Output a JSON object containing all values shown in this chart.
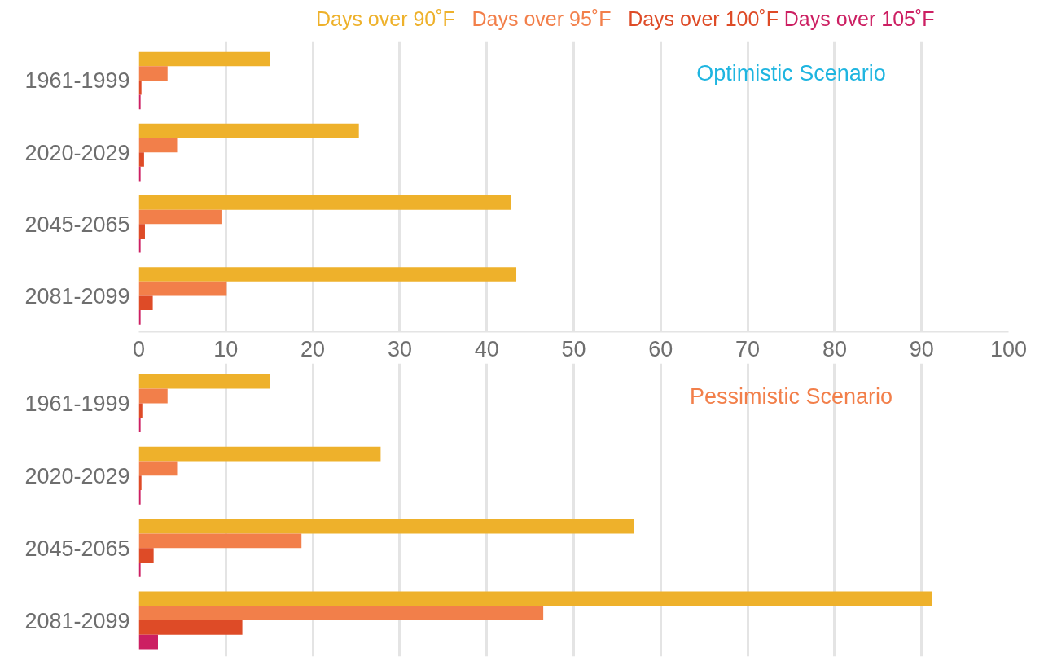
{
  "chart_data": [
    {
      "type": "bar",
      "orientation": "horizontal",
      "annotations": [
        "Optimistic Scenario"
      ],
      "legend": "top",
      "categories": [
        "1961-1999",
        "2020-2029",
        "2045-2065",
        "2081-2099"
      ],
      "series": [
        {
          "name": "Days over 90˚F",
          "color": "#eeb12b",
          "values": [
            15.1,
            25.3,
            42.8,
            43.4
          ]
        },
        {
          "name": "Days over 95˚F",
          "color": "#f27f4a",
          "values": [
            3.3,
            4.4,
            9.5,
            10.1
          ]
        },
        {
          "name": "Days over 100˚F",
          "color": "#de4b27",
          "values": [
            0.3,
            0.6,
            0.7,
            1.6
          ]
        },
        {
          "name": "Days over 105˚F",
          "color": "#cc1f62",
          "values": [
            0.2,
            0.2,
            0.2,
            0.2
          ]
        }
      ],
      "xlim": [
        0,
        100
      ],
      "xticks": [
        0,
        10,
        20,
        30,
        40,
        50,
        60,
        70,
        80,
        90,
        100
      ],
      "grid": "x"
    },
    {
      "type": "bar",
      "orientation": "horizontal",
      "annotations": [
        "Pessimistic Scenario"
      ],
      "categories": [
        "1961-1999",
        "2020-2029",
        "2045-2065",
        "2081-2099"
      ],
      "series": [
        {
          "color": "#eeb12b",
          "values": [
            15.1,
            27.8,
            56.9,
            91.2
          ]
        },
        {
          "color": "#f27f4a",
          "values": [
            3.3,
            4.4,
            18.7,
            46.5
          ]
        },
        {
          "color": "#de4b27",
          "values": [
            0.4,
            0.3,
            1.7,
            11.9
          ]
        },
        {
          "color": "#cc1f62",
          "values": [
            0.2,
            0.2,
            0.2,
            2.2
          ]
        }
      ],
      "xlim": [
        0,
        100
      ],
      "xticks": [
        0,
        10,
        20,
        30,
        40,
        50,
        60,
        70,
        80,
        90,
        100
      ],
      "grid": "x",
      "tick_labels": "y"
    }
  ]
}
